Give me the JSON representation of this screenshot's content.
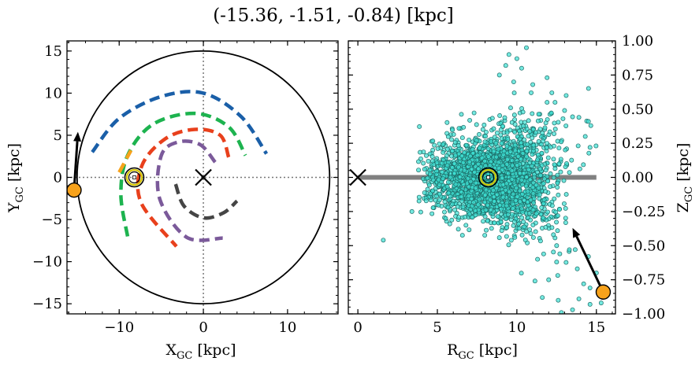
{
  "figure_title": "(-15.36, -1.51, -0.84) [kpc]",
  "chart_data": [
    {
      "type": "line",
      "panel": "left",
      "xlabel": "X",
      "xlabel_sub": "GC",
      "xlabel_unit": " [kpc]",
      "ylabel": "Y",
      "ylabel_sub": "GC",
      "ylabel_unit": " [kpc]",
      "xlim": [
        -16.2,
        16.0
      ],
      "ylim": [
        -16.2,
        16.2
      ],
      "xticks": [
        -10,
        0,
        10
      ],
      "xtick_labels": [
        "−10",
        "0",
        "10"
      ],
      "yticks": [
        -15,
        -10,
        -5,
        0,
        5,
        10,
        15
      ],
      "ytick_labels": [
        "−15",
        "−10",
        "−5",
        "0",
        "5",
        "10",
        "15"
      ],
      "grid": false,
      "reference_lines": {
        "x": 0,
        "y": 0,
        "style": "dotted"
      },
      "galactic_center": [
        0,
        0
      ],
      "boundary_circle_radius": 15,
      "sun_position": [
        -8.2,
        0.0
      ],
      "target_position": [
        -15.36,
        -1.51
      ],
      "target_motion_arrow_end": [
        -14.9,
        5.4
      ],
      "arms": [
        {
          "color": "#1a5fa8",
          "points": [
            [
              -13.2,
              3.0
            ],
            [
              -10.0,
              7.0
            ],
            [
              -5.0,
              9.6
            ],
            [
              0.0,
              10.0
            ],
            [
              4.5,
              7.2
            ],
            [
              7.5,
              2.8
            ]
          ]
        },
        {
          "color": "#1db34f",
          "points": [
            [
              -9.0,
              -7.0
            ],
            [
              -9.8,
              -2.0
            ],
            [
              -9.0,
              2.6
            ],
            [
              -6.0,
              6.3
            ],
            [
              -1.0,
              7.6
            ],
            [
              3.0,
              6.0
            ],
            [
              5.0,
              2.6
            ]
          ]
        },
        {
          "color": "#f7a21b",
          "points": [
            [
              -10.0,
              0.6
            ],
            [
              -8.6,
              3.2
            ]
          ]
        },
        {
          "color": "#e8401c",
          "points": [
            [
              3.0,
              2.4
            ],
            [
              2.0,
              5.0
            ],
            [
              -1.0,
              5.7
            ],
            [
              -4.5,
              4.6
            ],
            [
              -7.3,
              1.4
            ],
            [
              -7.4,
              -3.0
            ],
            [
              -3.2,
              -8.2
            ]
          ]
        },
        {
          "color": "#7b5a9a",
          "points": [
            [
              1.4,
              1.8
            ],
            [
              -0.4,
              3.9
            ],
            [
              -3.0,
              4.2
            ],
            [
              -5.0,
              2.6
            ],
            [
              -5.2,
              -2.5
            ],
            [
              -2.0,
              -7.1
            ],
            [
              2.3,
              -7.2
            ]
          ]
        },
        {
          "color": "#454545",
          "points": [
            [
              -3.3,
              -0.8
            ],
            [
              -2.3,
              -3.4
            ],
            [
              0.0,
              -4.8
            ],
            [
              2.4,
              -4.2
            ],
            [
              4.0,
              -2.8
            ]
          ]
        }
      ]
    },
    {
      "type": "scatter",
      "panel": "right",
      "xlabel": "R",
      "xlabel_sub": "GC",
      "xlabel_unit": " [kpc]",
      "ylabel": "Z",
      "ylabel_sub": "GC",
      "ylabel_unit": " [kpc]",
      "xlim": [
        -0.6,
        16.2
      ],
      "ylim": [
        -1.0,
        1.0
      ],
      "xticks": [
        0,
        5,
        10,
        15
      ],
      "xtick_labels": [
        "0",
        "5",
        "10",
        "15"
      ],
      "yticks": [
        -1.0,
        -0.75,
        -0.5,
        -0.25,
        0.0,
        0.25,
        0.5,
        0.75,
        1.0
      ],
      "ytick_labels": [
        "−1.00",
        "−0.75",
        "−0.50",
        "−0.25",
        "0.00",
        "0.25",
        "0.50",
        "0.75",
        "1.00"
      ],
      "grid": false,
      "galactic_center": [
        0,
        0
      ],
      "disk_line": {
        "x": [
          0,
          15
        ],
        "y": 0,
        "color": "#808080"
      },
      "sun_position": [
        8.2,
        0.0
      ],
      "target_position": [
        15.43,
        -0.84
      ],
      "target_motion_arrow_end": [
        13.5,
        -0.37
      ],
      "star_count": 2600,
      "point_color": "#3fe0d4",
      "point_edge_color": "#1d6b66",
      "distribution": {
        "center_x": 8.5,
        "spread_x": 1.9,
        "center_y": 0.0,
        "spread_y": 0.14,
        "flare": 0.03
      },
      "points": [
        [
          10.6,
          0.95
        ],
        [
          9.5,
          0.9
        ],
        [
          10.0,
          0.87
        ],
        [
          9.3,
          0.82
        ],
        [
          10.3,
          0.8
        ],
        [
          8.9,
          0.75
        ],
        [
          11.9,
          0.73
        ],
        [
          9.8,
          0.7
        ],
        [
          11.0,
          0.68
        ],
        [
          12.2,
          0.62
        ],
        [
          10.9,
          0.62
        ],
        [
          13.1,
          0.6
        ],
        [
          12.4,
          0.55
        ],
        [
          11.9,
          0.55
        ],
        [
          13.0,
          0.49
        ],
        [
          12.9,
          0.43
        ],
        [
          14.5,
          0.41
        ],
        [
          13.9,
          0.44
        ],
        [
          14.3,
          0.3
        ],
        [
          14.6,
          0.22
        ],
        [
          1.6,
          -0.46
        ],
        [
          3.4,
          -0.25
        ],
        [
          4.7,
          0.12
        ],
        [
          4.2,
          0.06
        ],
        [
          12.5,
          -0.5
        ],
        [
          12.3,
          -0.42
        ],
        [
          13.3,
          -0.53
        ],
        [
          12.7,
          -0.56
        ],
        [
          14.5,
          -0.58
        ],
        [
          11.3,
          -0.6
        ],
        [
          12.5,
          -0.62
        ],
        [
          13.8,
          -0.67
        ],
        [
          12.0,
          -0.75
        ],
        [
          15.0,
          -0.7
        ],
        [
          14.2,
          -0.78
        ],
        [
          14.6,
          -0.81
        ],
        [
          12.6,
          -0.9
        ],
        [
          11.6,
          -0.88
        ],
        [
          13.9,
          -0.89
        ],
        [
          14.6,
          -0.93
        ],
        [
          12.8,
          -0.99
        ],
        [
          13.5,
          -0.97
        ],
        [
          15.3,
          -0.92
        ]
      ]
    }
  ]
}
